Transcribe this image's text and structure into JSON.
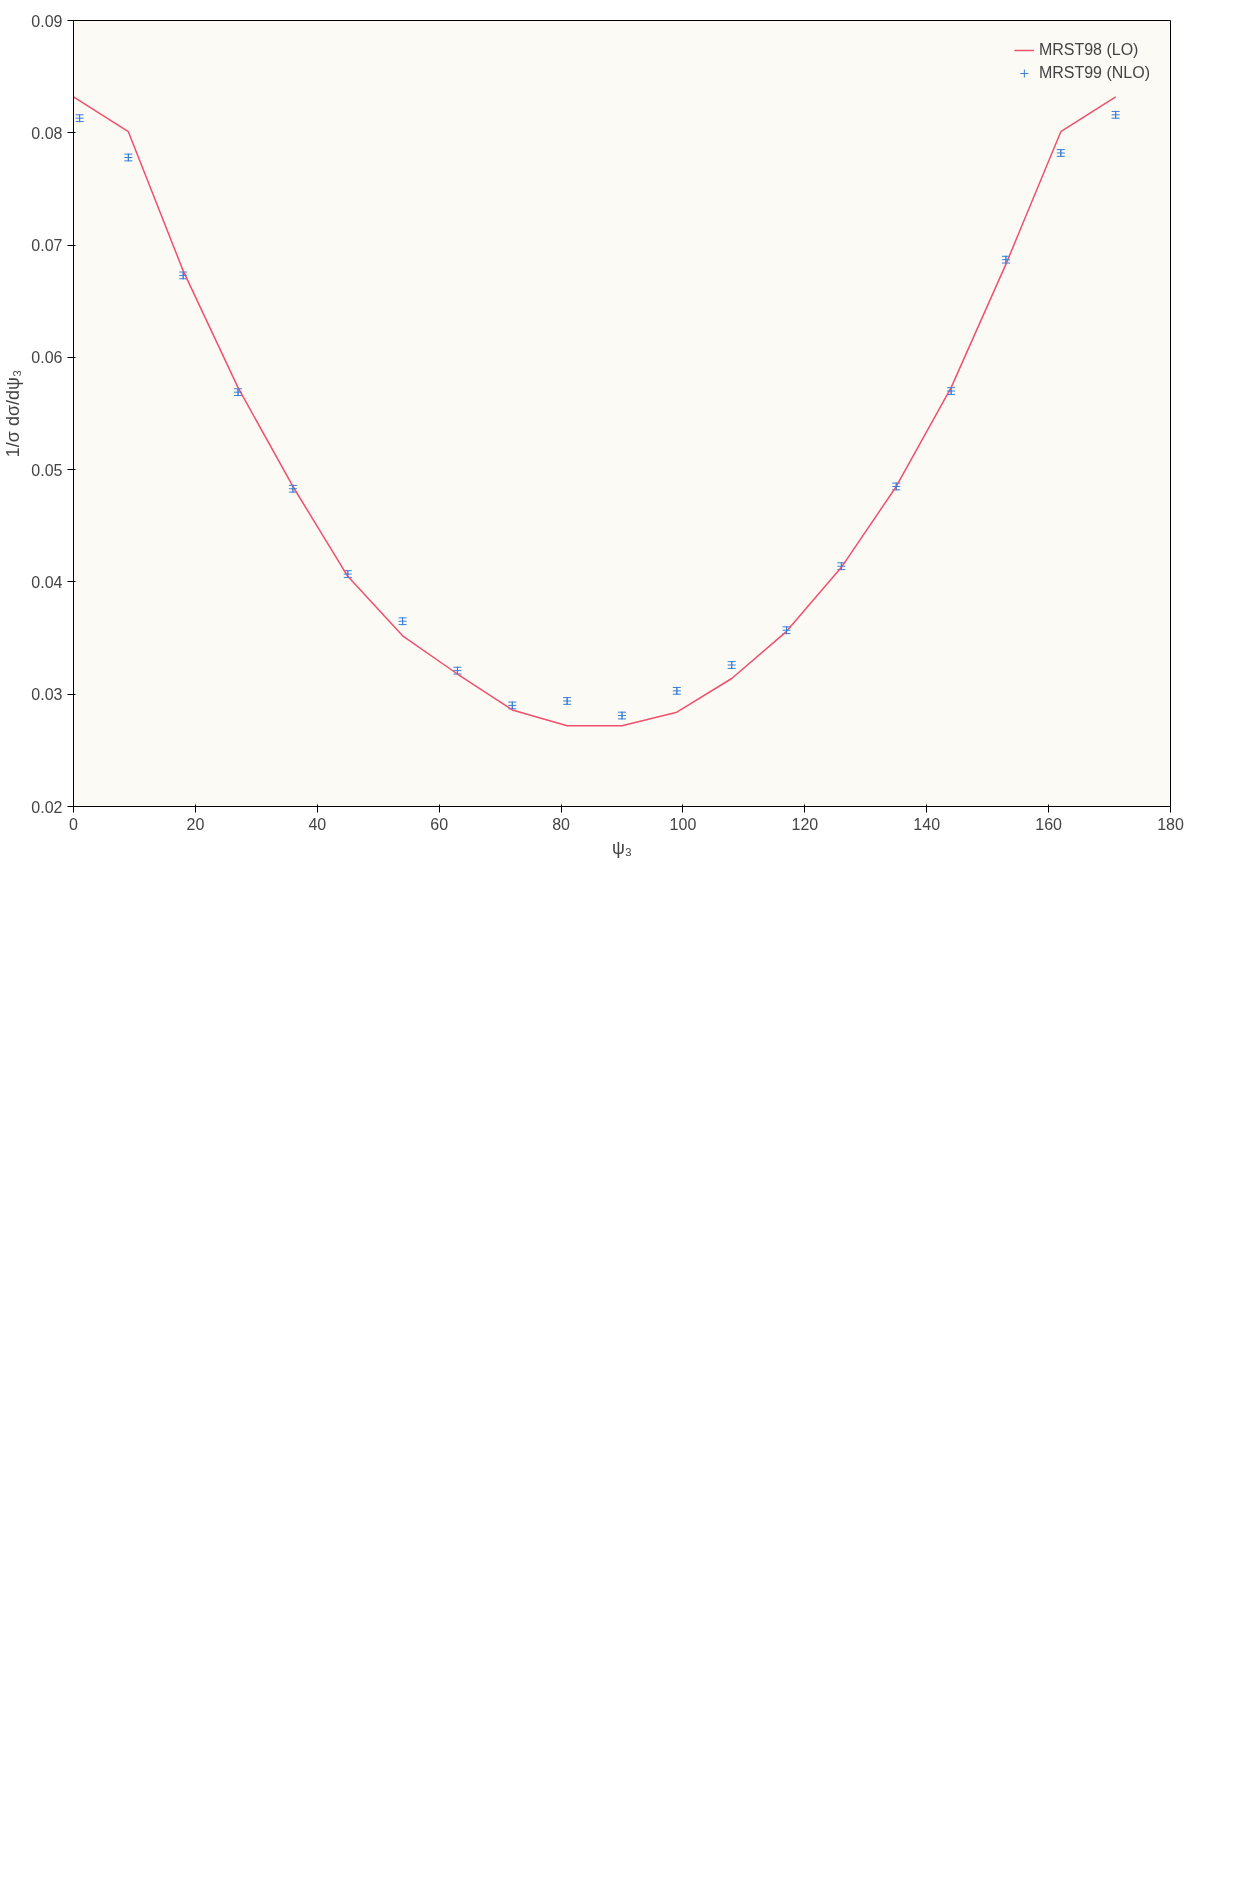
{
  "chart_data": {
    "type": "line",
    "xlabel": "ψ₃",
    "ylabel": "1/σ dσ/dψ₃",
    "x": [
      0,
      9,
      18,
      27,
      36,
      45,
      54,
      63,
      72,
      81,
      90,
      99,
      108,
      117,
      126,
      135,
      144,
      153,
      162,
      171
    ],
    "series": [
      {
        "name": "MRST98 (LO)",
        "color": "#f0506e",
        "line_style": "solid",
        "values": [
          0.0832,
          0.0801,
          0.0677,
          0.0573,
          0.0485,
          0.0405,
          0.0352,
          0.0318,
          0.0286,
          0.0272,
          0.0272,
          0.0284,
          0.0314,
          0.0356,
          0.0413,
          0.0485,
          0.0573,
          0.0683,
          0.0801,
          0.0832
        ]
      },
      {
        "name": "MRST99 (NLO)",
        "color": "#3a7fd8",
        "type": "scatter",
        "marker": "cross",
        "x": [
          1,
          9,
          18,
          27,
          36,
          45,
          54,
          63,
          72,
          81,
          90,
          99,
          108,
          117,
          126,
          135,
          144,
          153,
          162,
          171
        ],
        "values": [
          0.0813,
          0.0778,
          0.0673,
          0.0569,
          0.0483,
          0.0407,
          0.0365,
          0.0321,
          0.029,
          0.0294,
          0.0281,
          0.0303,
          0.0326,
          0.0357,
          0.0414,
          0.0485,
          0.057,
          0.0687,
          0.0782,
          0.0816
        ],
        "errors": [
          0.0003,
          0.0003,
          0.0003,
          0.0003,
          0.0003,
          0.0003,
          0.0003,
          0.0003,
          0.0003,
          0.0003,
          0.0003,
          0.0003,
          0.0003,
          0.0003,
          0.0003,
          0.0003,
          0.0003,
          0.0003,
          0.0003,
          0.0003
        ]
      }
    ],
    "xlim": [
      0,
      180
    ],
    "xticks": [
      0,
      20,
      40,
      60,
      80,
      100,
      120,
      140,
      160,
      180
    ],
    "ylim": [
      0.02,
      0.09
    ],
    "yticks": [
      0.02,
      0.03,
      0.04,
      0.05,
      0.06,
      0.07,
      0.08,
      0.09
    ],
    "grid": false,
    "legend": "top right"
  }
}
